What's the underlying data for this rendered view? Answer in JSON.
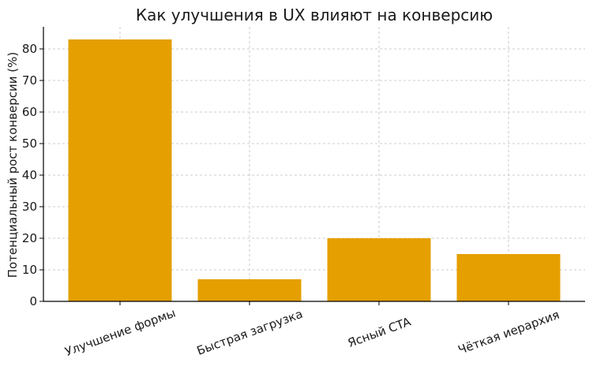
{
  "chart_data": {
    "type": "bar",
    "title": "Как улучшения в UX влияют на конверсию",
    "xlabel": "",
    "ylabel": "Потенциальный рост конверсии (%)",
    "categories": [
      "Улучшение формы",
      "Быстрая загрузка",
      "Ясный CTA",
      "Чёткая иерархия"
    ],
    "values": [
      83,
      7,
      20,
      15
    ],
    "ylim": [
      0,
      87
    ],
    "yticks": [
      0,
      10,
      20,
      30,
      40,
      50,
      60,
      70,
      80
    ],
    "grid": true,
    "bar_color": "#e59f00",
    "grid_color": "#bdbdbd",
    "axis_color": "#000000"
  }
}
